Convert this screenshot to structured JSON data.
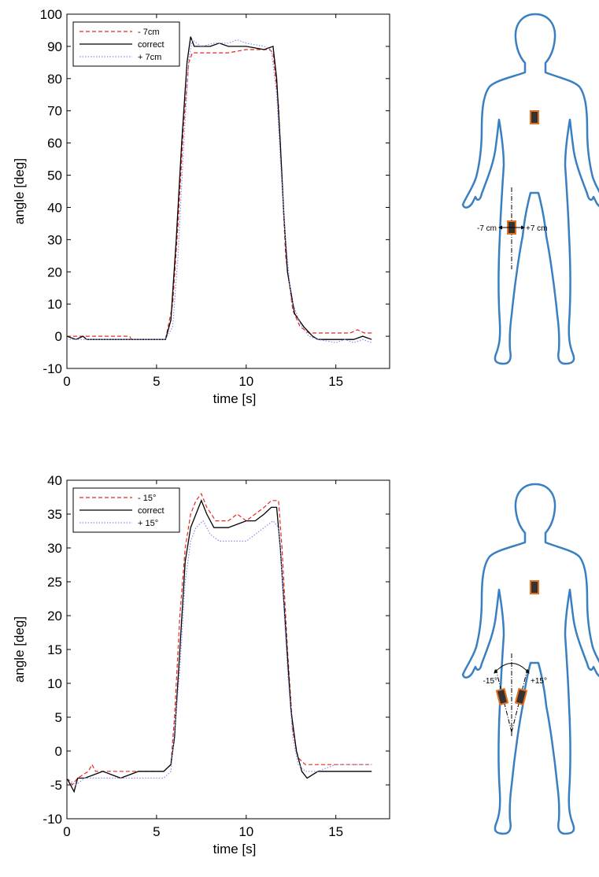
{
  "chart_data": [
    {
      "type": "line",
      "xlabel": "time [s]",
      "ylabel": "angle [deg]",
      "xlim": [
        0,
        18
      ],
      "ylim": [
        -10,
        100
      ],
      "xticks": [
        0,
        5,
        10,
        15
      ],
      "yticks": [
        -10,
        0,
        10,
        20,
        30,
        40,
        50,
        60,
        70,
        80,
        90,
        100
      ],
      "grid": false,
      "legend_position": "top-left",
      "series": [
        {
          "name": "- 7cm",
          "color": "#e8281e",
          "style": "dashed",
          "points": [
            [
              0,
              0
            ],
            [
              0.3,
              0
            ],
            [
              0.8,
              0
            ],
            [
              1.5,
              0
            ],
            [
              2.2,
              0
            ],
            [
              3.5,
              0
            ],
            [
              3.6,
              -1
            ],
            [
              5.5,
              -1
            ],
            [
              5.9,
              10
            ],
            [
              6.2,
              35
            ],
            [
              6.5,
              65
            ],
            [
              6.8,
              85
            ],
            [
              7.0,
              88
            ],
            [
              8,
              88
            ],
            [
              9,
              88
            ],
            [
              10,
              89
            ],
            [
              10.8,
              89
            ],
            [
              11.3,
              89
            ],
            [
              11.5,
              88
            ],
            [
              11.8,
              72
            ],
            [
              12.0,
              48
            ],
            [
              12.2,
              25
            ],
            [
              12.6,
              8
            ],
            [
              13,
              3
            ],
            [
              13.5,
              1
            ],
            [
              14,
              1
            ],
            [
              15,
              1
            ],
            [
              15.8,
              1
            ],
            [
              16.2,
              2
            ],
            [
              16.6,
              1
            ],
            [
              17,
              1
            ]
          ]
        },
        {
          "name": "correct",
          "color": "#000000",
          "style": "solid",
          "points": [
            [
              0,
              0
            ],
            [
              0.5,
              -1
            ],
            [
              0.9,
              0
            ],
            [
              1.1,
              -1
            ],
            [
              2,
              -1
            ],
            [
              3,
              -1
            ],
            [
              4,
              -1
            ],
            [
              5.5,
              -1
            ],
            [
              5.8,
              5
            ],
            [
              6.1,
              30
            ],
            [
              6.4,
              60
            ],
            [
              6.7,
              85
            ],
            [
              6.9,
              93
            ],
            [
              7.1,
              90
            ],
            [
              8,
              90
            ],
            [
              8.5,
              91
            ],
            [
              9,
              90
            ],
            [
              10,
              90
            ],
            [
              11,
              89
            ],
            [
              11.5,
              90
            ],
            [
              11.7,
              80
            ],
            [
              11.9,
              60
            ],
            [
              12.1,
              38
            ],
            [
              12.3,
              20
            ],
            [
              12.7,
              7
            ],
            [
              13.2,
              3
            ],
            [
              13.7,
              0
            ],
            [
              14,
              -1
            ],
            [
              15,
              -1
            ],
            [
              16,
              -1
            ],
            [
              16.5,
              0
            ],
            [
              17,
              -1
            ]
          ]
        },
        {
          "name": "+ 7cm",
          "color": "#8c8cf0",
          "style": "dotted",
          "points": [
            [
              0,
              -1
            ],
            [
              1,
              -1
            ],
            [
              2,
              -1
            ],
            [
              3,
              -1
            ],
            [
              4,
              -1
            ],
            [
              5.5,
              -1
            ],
            [
              5.9,
              3
            ],
            [
              6.2,
              25
            ],
            [
              6.5,
              58
            ],
            [
              6.8,
              86
            ],
            [
              7.0,
              92
            ],
            [
              7.5,
              90
            ],
            [
              8.2,
              91
            ],
            [
              9,
              91
            ],
            [
              9.5,
              92
            ],
            [
              10,
              91
            ],
            [
              11,
              90
            ],
            [
              11.4,
              89
            ],
            [
              11.7,
              75
            ],
            [
              11.9,
              55
            ],
            [
              12.2,
              30
            ],
            [
              12.5,
              12
            ],
            [
              13,
              4
            ],
            [
              13.5,
              0
            ],
            [
              14,
              -1
            ],
            [
              15,
              -2
            ],
            [
              15.5,
              -1
            ],
            [
              16,
              -2
            ],
            [
              16.5,
              -1
            ],
            [
              17,
              -2
            ]
          ]
        }
      ]
    },
    {
      "type": "line",
      "xlabel": "time [s]",
      "ylabel": "angle [deg]",
      "xlim": [
        0,
        18
      ],
      "ylim": [
        -10,
        40
      ],
      "xticks": [
        0,
        5,
        10,
        15
      ],
      "yticks": [
        -10,
        -5,
        0,
        5,
        10,
        15,
        20,
        25,
        30,
        35,
        40
      ],
      "grid": false,
      "legend_position": "top-left",
      "series": [
        {
          "name": "- 15°",
          "color": "#e8281e",
          "style": "dashed",
          "points": [
            [
              0,
              -4
            ],
            [
              0.3,
              -5
            ],
            [
              0.6,
              -4
            ],
            [
              1.2,
              -3
            ],
            [
              1.4,
              -2
            ],
            [
              1.6,
              -3
            ],
            [
              3,
              -3
            ],
            [
              5.4,
              -3
            ],
            [
              5.8,
              -2
            ],
            [
              6.0,
              5
            ],
            [
              6.3,
              20
            ],
            [
              6.6,
              30
            ],
            [
              6.9,
              35
            ],
            [
              7.2,
              37
            ],
            [
              7.5,
              38
            ],
            [
              7.8,
              36
            ],
            [
              8.3,
              34
            ],
            [
              9,
              34
            ],
            [
              9.5,
              35
            ],
            [
              10,
              34
            ],
            [
              10.5,
              35
            ],
            [
              11,
              36
            ],
            [
              11.4,
              37
            ],
            [
              11.8,
              37
            ],
            [
              12.0,
              30
            ],
            [
              12.3,
              15
            ],
            [
              12.6,
              3
            ],
            [
              12.9,
              -1
            ],
            [
              13.3,
              -2
            ],
            [
              14,
              -2
            ],
            [
              15,
              -2
            ],
            [
              16,
              -2
            ],
            [
              17,
              -2
            ]
          ]
        },
        {
          "name": "correct",
          "color": "#000000",
          "style": "solid",
          "points": [
            [
              0,
              -4
            ],
            [
              0.4,
              -6
            ],
            [
              0.6,
              -4
            ],
            [
              1,
              -4
            ],
            [
              2,
              -3
            ],
            [
              3,
              -4
            ],
            [
              4,
              -3
            ],
            [
              5.4,
              -3
            ],
            [
              5.8,
              -2
            ],
            [
              6.0,
              2
            ],
            [
              6.3,
              15
            ],
            [
              6.6,
              28
            ],
            [
              6.9,
              33
            ],
            [
              7.2,
              35
            ],
            [
              7.5,
              37
            ],
            [
              7.8,
              35
            ],
            [
              8.2,
              33
            ],
            [
              9,
              33
            ],
            [
              10,
              34
            ],
            [
              10.5,
              34
            ],
            [
              11,
              35
            ],
            [
              11.4,
              36
            ],
            [
              11.7,
              36
            ],
            [
              11.9,
              30
            ],
            [
              12.2,
              18
            ],
            [
              12.5,
              6
            ],
            [
              12.8,
              0
            ],
            [
              13.1,
              -3
            ],
            [
              13.4,
              -4
            ],
            [
              14,
              -3
            ],
            [
              15,
              -3
            ],
            [
              16,
              -3
            ],
            [
              17,
              -3
            ]
          ]
        },
        {
          "name": "+ 15°",
          "color": "#8c8cf0",
          "style": "dotted",
          "points": [
            [
              0,
              -4
            ],
            [
              0.5,
              -5
            ],
            [
              1,
              -4
            ],
            [
              2,
              -4
            ],
            [
              3,
              -4
            ],
            [
              4,
              -4
            ],
            [
              5.4,
              -4
            ],
            [
              5.8,
              -3
            ],
            [
              6.0,
              3
            ],
            [
              6.3,
              12
            ],
            [
              6.6,
              25
            ],
            [
              6.9,
              31
            ],
            [
              7.2,
              33
            ],
            [
              7.6,
              34
            ],
            [
              8,
              32
            ],
            [
              8.5,
              31
            ],
            [
              9,
              31
            ],
            [
              10,
              31
            ],
            [
              10.5,
              32
            ],
            [
              11,
              33
            ],
            [
              11.5,
              34
            ],
            [
              11.8,
              33
            ],
            [
              12.0,
              26
            ],
            [
              12.3,
              12
            ],
            [
              12.6,
              2
            ],
            [
              12.9,
              -2
            ],
            [
              13.3,
              -3
            ],
            [
              14,
              -3
            ],
            [
              15,
              -2
            ],
            [
              16,
              -2
            ],
            [
              17,
              -2
            ]
          ]
        }
      ]
    }
  ],
  "body_diagrams": [
    {
      "annotation_left": "-7 cm",
      "annotation_right": "+7 cm"
    },
    {
      "annotation_left": "-15°",
      "annotation_right": "+15°"
    }
  ]
}
